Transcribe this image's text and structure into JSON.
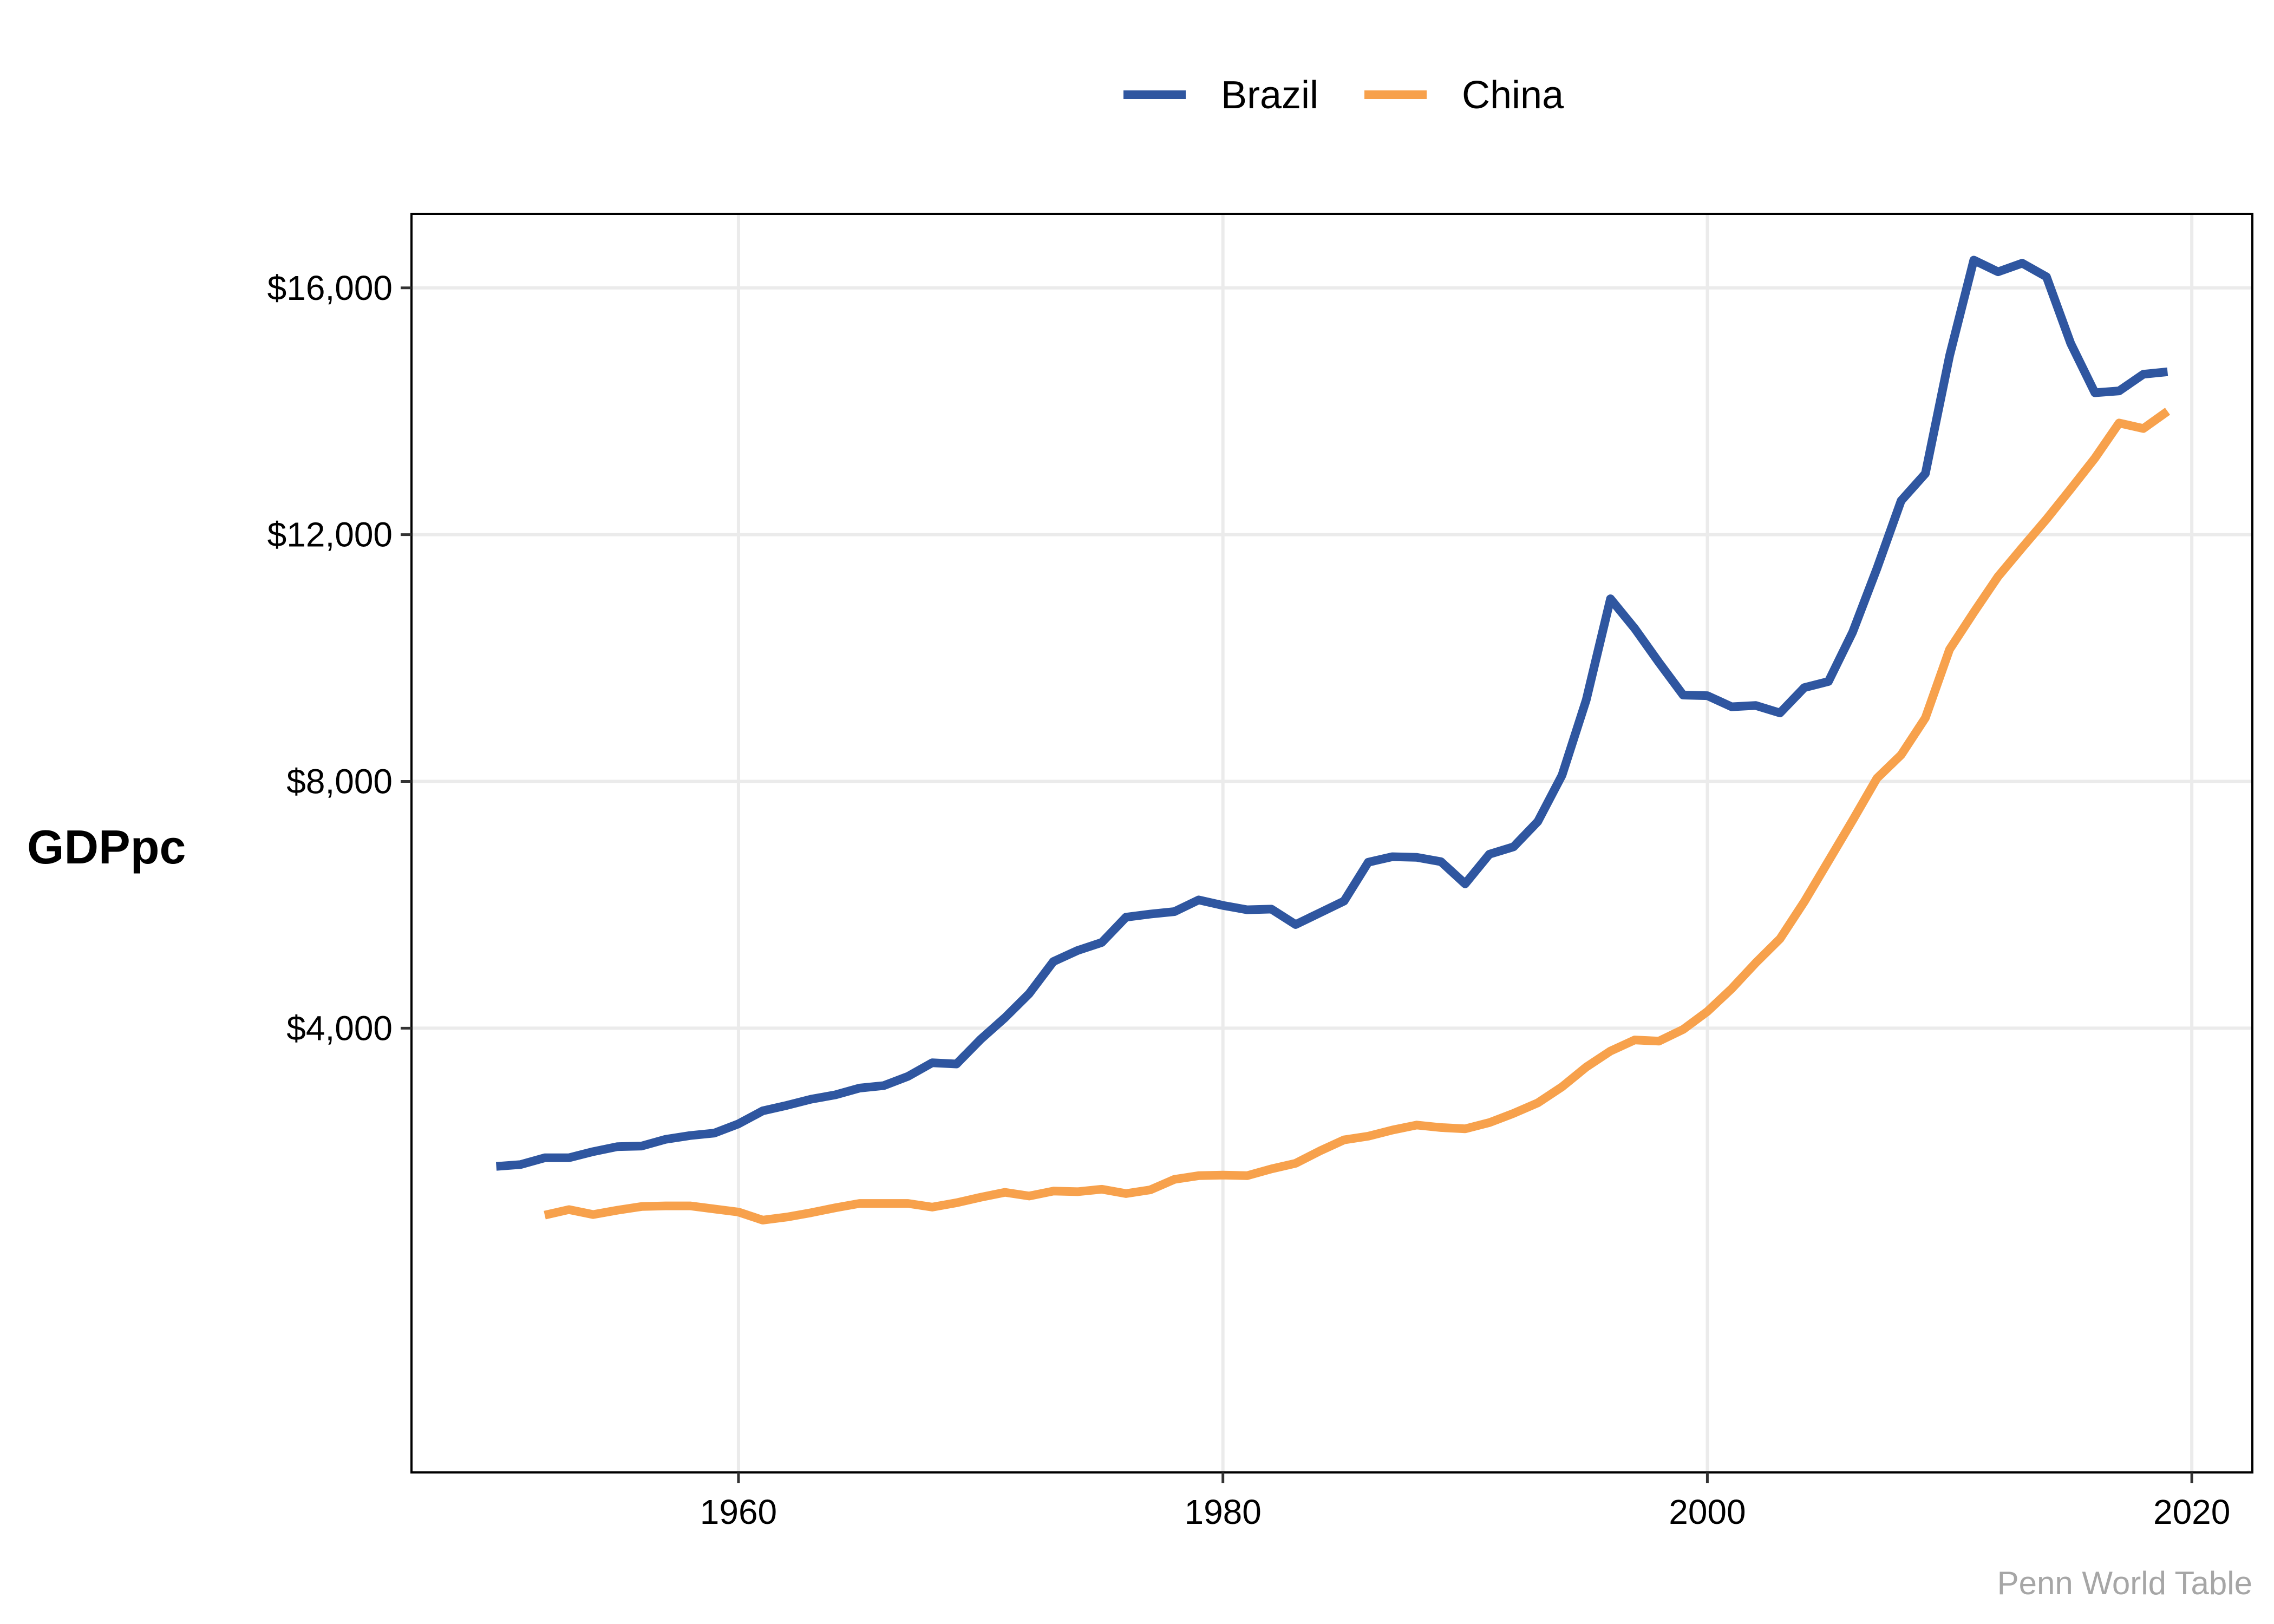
{
  "chart_data": {
    "type": "line",
    "title": "",
    "xlabel": "",
    "ylabel": "GDPpc",
    "caption": "Penn World Table",
    "xlim": [
      1946.5,
      2022.5
    ],
    "ylim": [
      -3200,
      17200
    ],
    "x_ticks": [
      1960,
      1980,
      2000,
      2020
    ],
    "x_tick_labels": [
      "1960",
      "1980",
      "2000",
      "2020"
    ],
    "y_ticks": [
      4000,
      8000,
      12000,
      16000
    ],
    "y_tick_labels": [
      "$4,000",
      "$8,000",
      "$12,000",
      "$16,000"
    ],
    "grid": true,
    "legend": {
      "position": "top"
    },
    "series": [
      {
        "name": "Brazil",
        "color": "#2F56A0",
        "x": [
          1950,
          1951,
          1952,
          1953,
          1954,
          1955,
          1956,
          1957,
          1958,
          1959,
          1960,
          1961,
          1962,
          1963,
          1964,
          1965,
          1966,
          1967,
          1968,
          1969,
          1970,
          1971,
          1972,
          1973,
          1974,
          1975,
          1976,
          1977,
          1978,
          1979,
          1980,
          1981,
          1982,
          1983,
          1984,
          1985,
          1986,
          1987,
          1988,
          1989,
          1990,
          1991,
          1992,
          1993,
          1994,
          1995,
          1996,
          1997,
          1998,
          1999,
          2000,
          2001,
          2002,
          2003,
          2004,
          2005,
          2006,
          2007,
          2008,
          2009,
          2010,
          2011,
          2012,
          2013,
          2014,
          2015,
          2016,
          2017,
          2018,
          2019
        ],
        "values": [
          1760,
          1790,
          1900,
          1900,
          2000,
          2080,
          2090,
          2200,
          2260,
          2300,
          2450,
          2660,
          2750,
          2850,
          2920,
          3030,
          3070,
          3220,
          3440,
          3420,
          3820,
          4170,
          4560,
          5080,
          5260,
          5390,
          5800,
          5850,
          5890,
          6080,
          5990,
          5920,
          5930,
          5680,
          5870,
          6060,
          6690,
          6780,
          6770,
          6700,
          6340,
          6820,
          6940,
          7350,
          8100,
          9320,
          10960,
          10480,
          9930,
          9400,
          9390,
          9210,
          9230,
          9110,
          9520,
          9620,
          10420,
          11450,
          12550,
          12990,
          14900,
          16450,
          16260,
          16400,
          16180,
          15100,
          14300,
          14330,
          14600,
          14640
        ]
      },
      {
        "name": "China",
        "color": "#F7A14C",
        "x": [
          1952,
          1953,
          1954,
          1955,
          1956,
          1957,
          1958,
          1959,
          1960,
          1961,
          1962,
          1963,
          1964,
          1965,
          1966,
          1967,
          1968,
          1969,
          1970,
          1971,
          1972,
          1973,
          1974,
          1975,
          1976,
          1977,
          1978,
          1979,
          1980,
          1981,
          1982,
          1983,
          1984,
          1985,
          1986,
          1987,
          1988,
          1989,
          1990,
          1991,
          1992,
          1993,
          1994,
          1995,
          1996,
          1997,
          1998,
          1999,
          2000,
          2001,
          2002,
          2003,
          2004,
          2005,
          2006,
          2007,
          2008,
          2009,
          2010,
          2011,
          2012,
          2013,
          2014,
          2015,
          2016,
          2017,
          2018,
          2019
        ],
        "values": [
          970,
          1060,
          980,
          1050,
          1110,
          1120,
          1120,
          1070,
          1020,
          890,
          940,
          1010,
          1090,
          1160,
          1160,
          1160,
          1100,
          1170,
          1260,
          1340,
          1280,
          1360,
          1350,
          1390,
          1320,
          1380,
          1550,
          1610,
          1620,
          1610,
          1720,
          1810,
          2010,
          2190,
          2250,
          2350,
          2430,
          2390,
          2370,
          2470,
          2620,
          2790,
          3050,
          3370,
          3630,
          3810,
          3790,
          3980,
          4270,
          4640,
          5060,
          5450,
          6050,
          6710,
          7370,
          8050,
          8430,
          9030,
          10140,
          10740,
          11320,
          11790,
          12250,
          12740,
          13240,
          13810,
          13720,
          14000
        ]
      }
    ]
  }
}
